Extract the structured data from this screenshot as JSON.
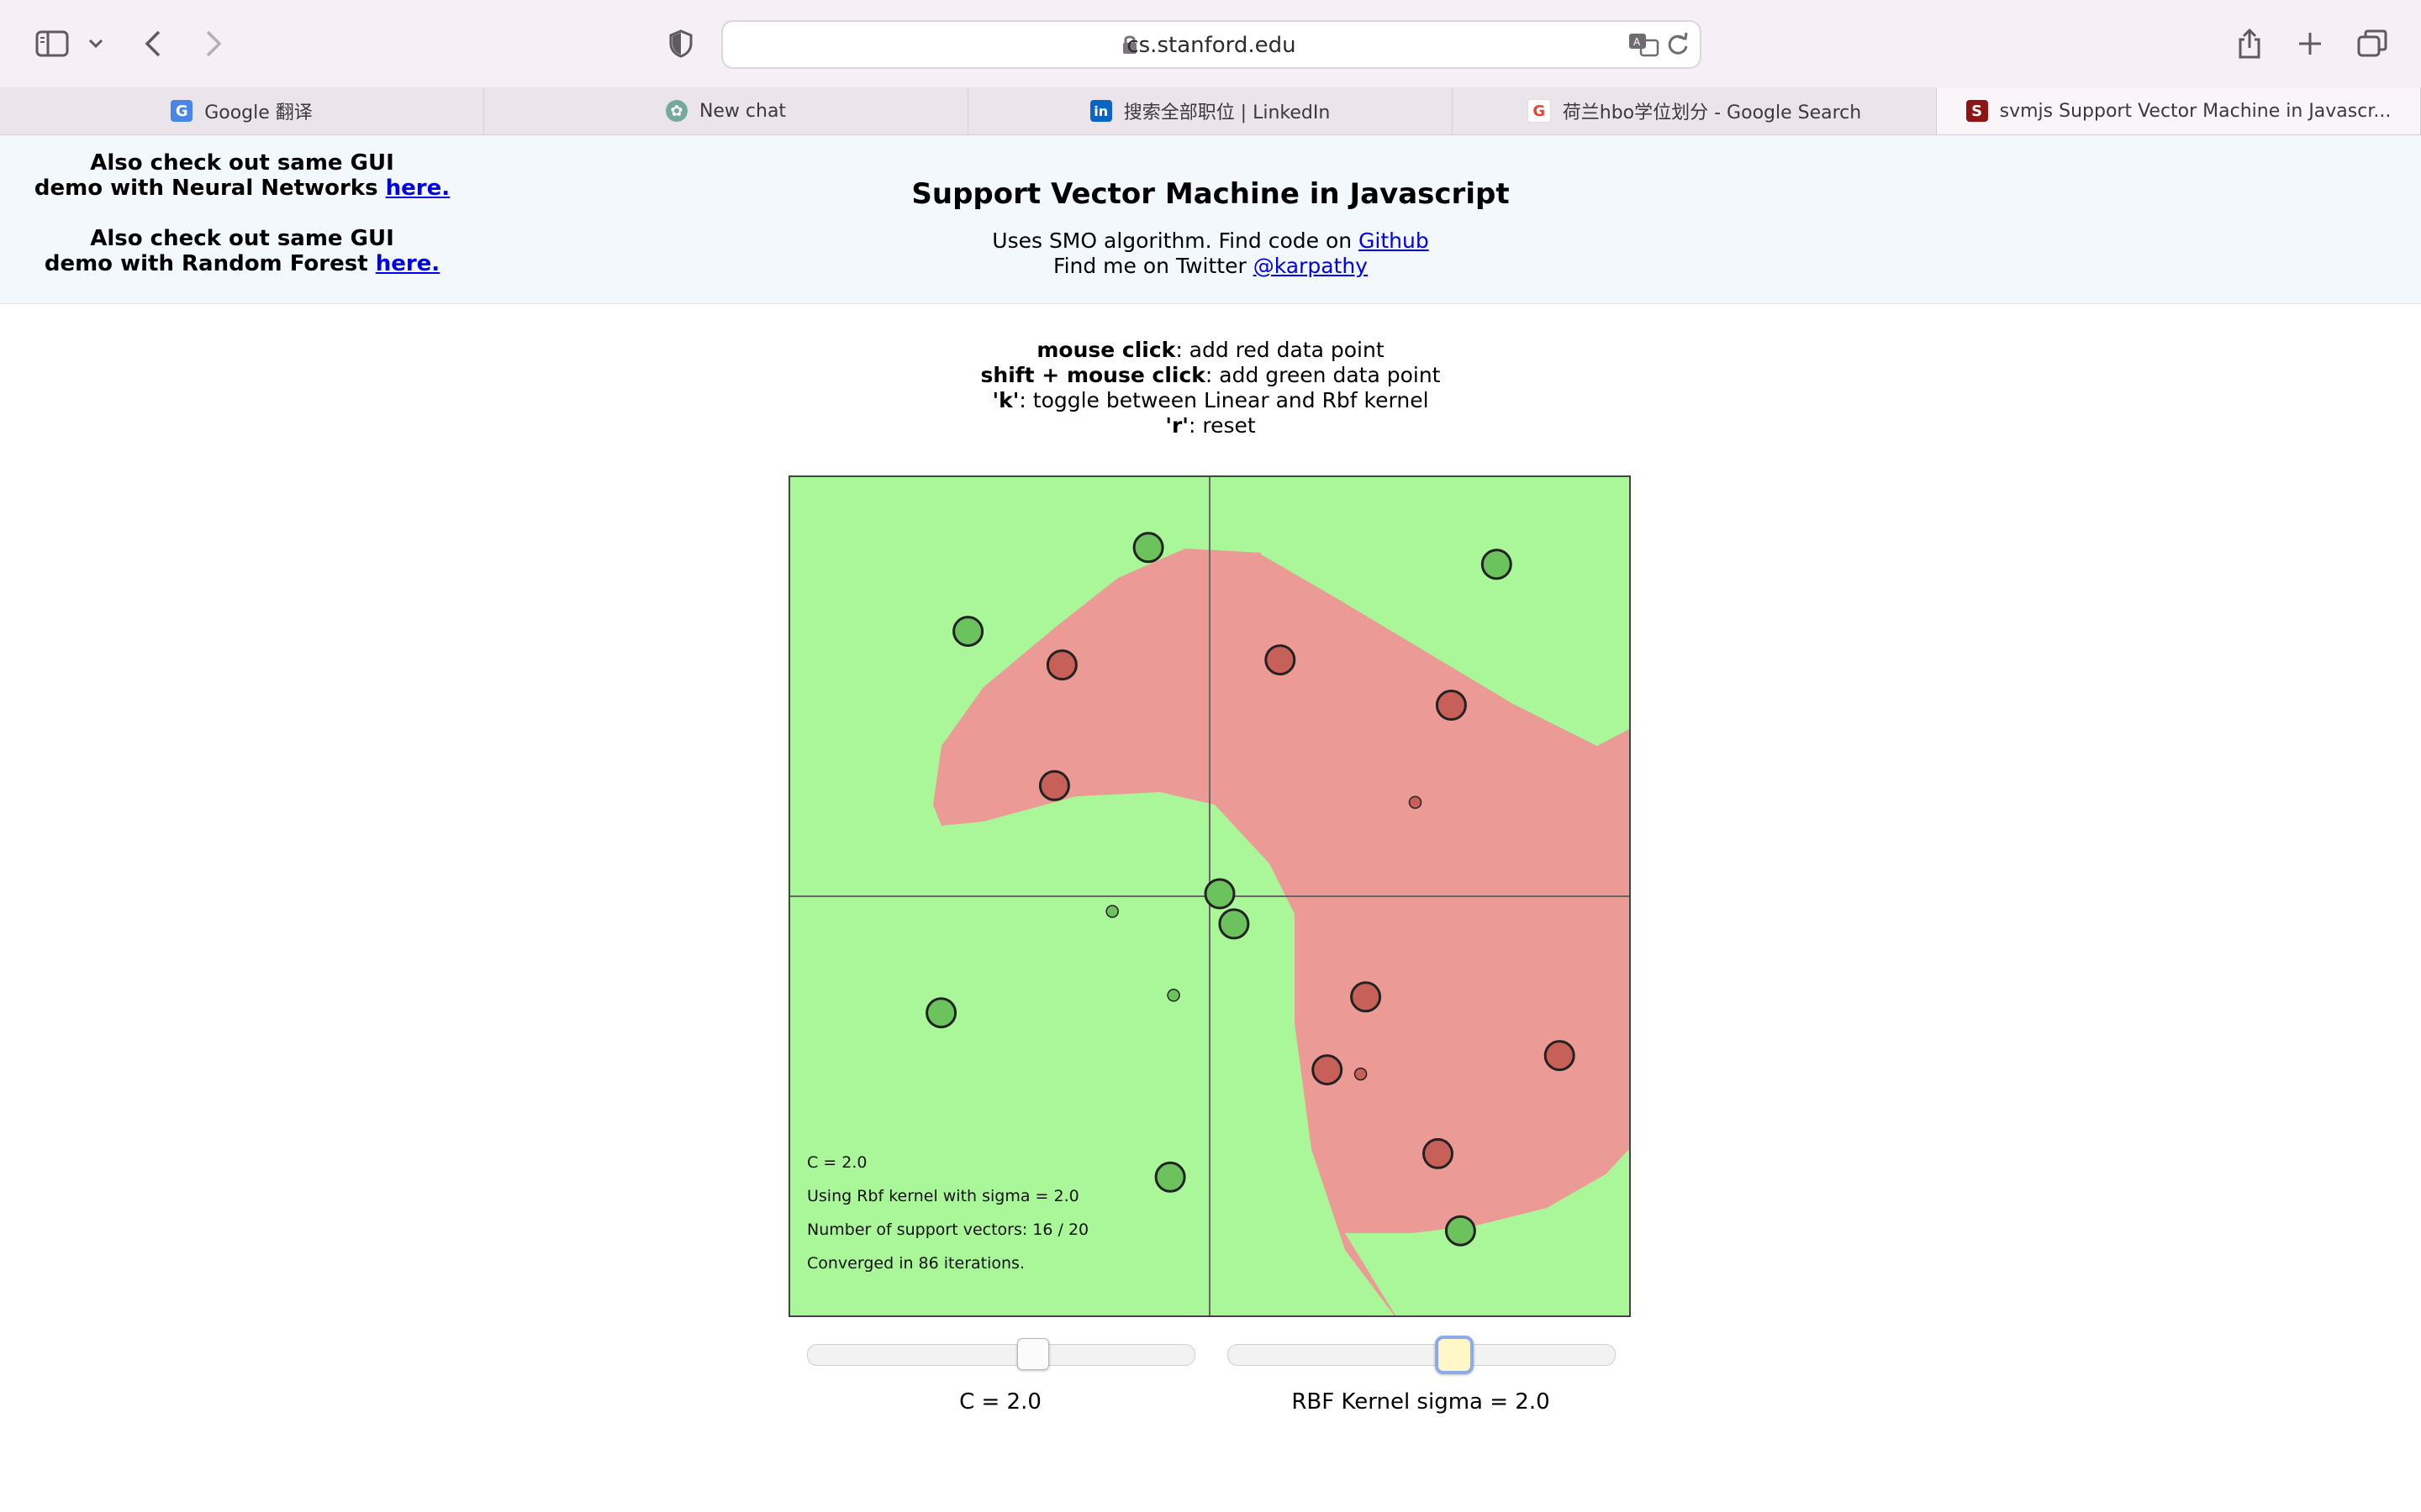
{
  "browser": {
    "url": "cs.stanford.edu",
    "tabs": [
      {
        "label": "Google 翻译",
        "icon": "google-translate-icon",
        "active": false
      },
      {
        "label": "New chat",
        "icon": "chatgpt-icon",
        "active": false
      },
      {
        "label": "搜索全部职位 | LinkedIn",
        "icon": "linkedin-icon",
        "active": false
      },
      {
        "label": "荷兰hbo学位划分 - Google Search",
        "icon": "google-icon",
        "active": false
      },
      {
        "label": "svmjs Support Vector Machine in Javascr...",
        "icon": "stanford-icon",
        "active": true
      }
    ]
  },
  "header": {
    "note1": {
      "line1": "Also check out same GUI",
      "line2": "demo with Neural Networks ",
      "link": "here."
    },
    "note2": {
      "line1": "Also check out same GUI",
      "line2": "demo with Random Forest ",
      "link": "here."
    },
    "title": "Support Vector Machine in Javascript",
    "sub1": {
      "text": "Uses SMO algorithm. Find code on ",
      "link": "Github"
    },
    "sub2": {
      "text": "Find me on Twitter ",
      "link": "@karpathy"
    }
  },
  "instructions": [
    {
      "key": "mouse click",
      "text": ": add red data point"
    },
    {
      "key": "shift + mouse click",
      "text": ": add green data point"
    },
    {
      "key": "'k'",
      "text": ": toggle between Linear and Rbf kernel"
    },
    {
      "key": "'r'",
      "text": ": reset"
    }
  ],
  "stats": {
    "c_line": "C = 2.0",
    "kernel_line": "Using Rbf kernel with sigma = 2.0",
    "sv_line": "Number of support vectors: 16 / 20",
    "converged_line": "Converged in 86 iterations."
  },
  "controls": {
    "c_label": "C = 2.0",
    "c_value_fraction": 0.58,
    "sigma_label": "RBF Kernel sigma = 2.0",
    "sigma_value_fraction": 0.58
  },
  "colors": {
    "green_region": "#aaf79a",
    "red_region": "#eb9a96",
    "green_point": "#6cc25c",
    "red_point": "#c8605a"
  },
  "plot": {
    "x_range": [
      -5,
      5
    ],
    "y_range": [
      -5,
      5
    ],
    "points": [
      {
        "x": -0.73,
        "y": 4.16,
        "label": "green",
        "sv": true
      },
      {
        "x": 3.42,
        "y": 3.96,
        "label": "green",
        "sv": true
      },
      {
        "x": -2.88,
        "y": 3.16,
        "label": "green",
        "sv": true
      },
      {
        "x": -1.76,
        "y": 2.76,
        "label": "red",
        "sv": true
      },
      {
        "x": 0.84,
        "y": 2.82,
        "label": "red",
        "sv": true
      },
      {
        "x": 2.88,
        "y": 2.28,
        "label": "red",
        "sv": true
      },
      {
        "x": -1.85,
        "y": 1.32,
        "label": "red",
        "sv": true
      },
      {
        "x": 2.45,
        "y": 1.12,
        "label": "red",
        "sv": false
      },
      {
        "x": 0.12,
        "y": 0.03,
        "label": "green",
        "sv": true
      },
      {
        "x": 0.29,
        "y": -0.33,
        "label": "green",
        "sv": true
      },
      {
        "x": -1.16,
        "y": -0.18,
        "label": "green",
        "sv": false
      },
      {
        "x": -0.43,
        "y": -1.18,
        "label": "green",
        "sv": false
      },
      {
        "x": -3.2,
        "y": -1.39,
        "label": "green",
        "sv": true
      },
      {
        "x": 1.86,
        "y": -1.2,
        "label": "red",
        "sv": true
      },
      {
        "x": 4.17,
        "y": -1.9,
        "label": "red",
        "sv": true
      },
      {
        "x": 1.4,
        "y": -2.07,
        "label": "red",
        "sv": true
      },
      {
        "x": 1.8,
        "y": -2.12,
        "label": "red",
        "sv": false
      },
      {
        "x": 2.72,
        "y": -3.07,
        "label": "red",
        "sv": true
      },
      {
        "x": -0.47,
        "y": -3.35,
        "label": "green",
        "sv": true
      },
      {
        "x": 2.99,
        "y": -3.99,
        "label": "green",
        "sv": true
      }
    ]
  }
}
